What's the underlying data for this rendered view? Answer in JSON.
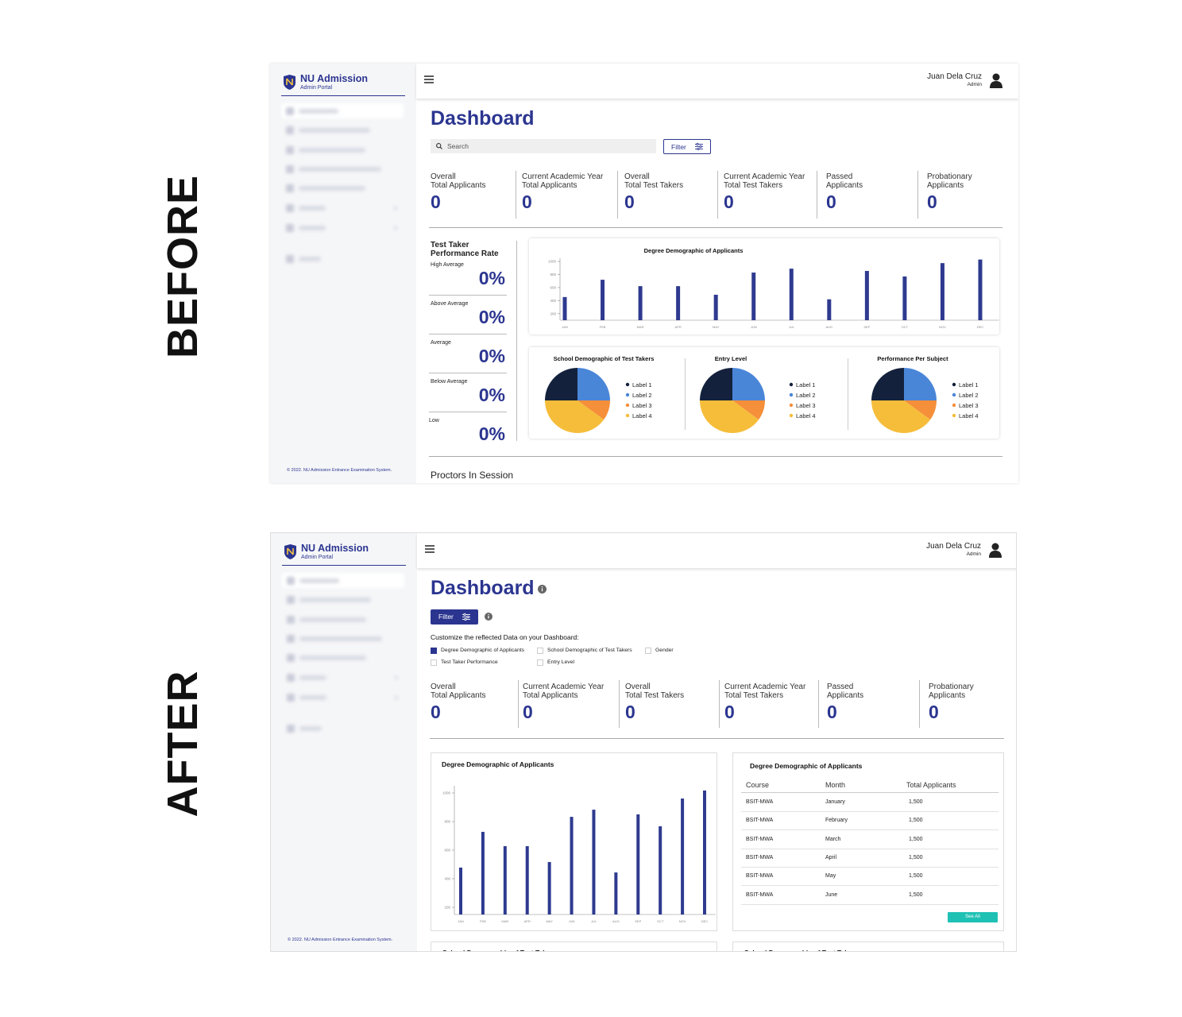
{
  "labels": {
    "before": "BEFORE",
    "after": "AFTER"
  },
  "sidebar": {
    "brand": "NU Admission",
    "subtitle": "Admin Portal",
    "footer": "© 2022. NU Admission Entrance Examination System."
  },
  "topbar": {
    "user": "Juan Dela Cruz",
    "role": "Admin"
  },
  "before": {
    "title": "Dashboard",
    "search": "Search",
    "filter": "Filter",
    "stats": [
      {
        "label": [
          "Overall",
          "Total Applicants"
        ],
        "value": 0
      },
      {
        "label": [
          "Current Academic Year",
          "Total Applicants"
        ],
        "value": 0
      },
      {
        "label": [
          "Overall",
          "Total Test Takers"
        ],
        "value": 0
      },
      {
        "label": [
          "Current Academic Year",
          "Total Test Takers"
        ],
        "value": 0
      },
      {
        "label": [
          "Passed",
          "Applicants"
        ],
        "value": 0
      },
      {
        "label": [
          "Probationary",
          "Applicants"
        ],
        "value": 0
      }
    ],
    "performance": {
      "title": "Test Taker Performance Rate",
      "rows": [
        {
          "label": "High Average",
          "value": "0%"
        },
        {
          "label": "Above Average",
          "value": "0%"
        },
        {
          "label": "Average",
          "value": "0%"
        },
        {
          "label": "Below Average",
          "value": "0%"
        },
        {
          "label": "Low",
          "value": "0%"
        }
      ]
    },
    "bar_chart": {
      "type": "bar",
      "title": "Degree Demographic of Applicants",
      "categories": [
        "JAN",
        "FEB",
        "MAR",
        "APR",
        "MAY",
        "JUN",
        "JUL",
        "AUG",
        "SEP",
        "OCT",
        "NOV",
        "DEC"
      ],
      "values": [
        455,
        720,
        622,
        622,
        490,
        830,
        890,
        420,
        855,
        770,
        975,
        1030
      ],
      "color": "#2e3a8f",
      "ylim": [
        100,
        1050
      ],
      "yticks": [
        200,
        400,
        600,
        800,
        1000
      ]
    },
    "pies": [
      {
        "type": "pie",
        "title": "School Demographic of Test Takers",
        "categories": [
          "Label 1",
          "Label 2",
          "Label 3",
          "Label 4"
        ],
        "values": [
          25,
          25,
          10,
          40
        ],
        "colors": [
          "#14213d",
          "#4a86d8",
          "#f58f3a",
          "#f5bd3a"
        ]
      },
      {
        "type": "pie",
        "title": "Entry Level",
        "categories": [
          "Label 1",
          "Label 2",
          "Label 3",
          "Label 4"
        ],
        "values": [
          25,
          25,
          10,
          40
        ],
        "colors": [
          "#14213d",
          "#4a86d8",
          "#f58f3a",
          "#f5bd3a"
        ]
      },
      {
        "type": "pie",
        "title": "Performance Per Subject",
        "categories": [
          "Label 1",
          "Label 2",
          "Label 3",
          "Label 4"
        ],
        "values": [
          25,
          25,
          10,
          40
        ],
        "colors": [
          "#14213d",
          "#4a86d8",
          "#f58f3a",
          "#f5bd3a"
        ]
      }
    ],
    "proctors": "Proctors In Session"
  },
  "after": {
    "title": "Dashboard",
    "filter": "Filter",
    "customize": {
      "title": "Customize the reflected Data on your Dashboard:",
      "options": [
        {
          "label": "Degree Demographic of Applicants",
          "checked": true
        },
        {
          "label": "School Demographic of Test Takers",
          "checked": false
        },
        {
          "label": "Gender",
          "checked": false
        },
        {
          "label": "Test Taker Performance",
          "checked": false
        },
        {
          "label": "Entry Level",
          "checked": false
        }
      ]
    },
    "stats": [
      {
        "label": [
          "Overall",
          "Total Applicants"
        ],
        "value": 0
      },
      {
        "label": [
          "Current Academic Year",
          "Total Applicants"
        ],
        "value": 0
      },
      {
        "label": [
          "Overall",
          "Total Test Takers"
        ],
        "value": 0
      },
      {
        "label": [
          "Current Academic Year",
          "Total Test Takers"
        ],
        "value": 0
      },
      {
        "label": [
          "Passed",
          "Applicants"
        ],
        "value": 0
      },
      {
        "label": [
          "Probationary",
          "Applicants"
        ],
        "value": 0
      }
    ],
    "bar_chart": {
      "type": "bar",
      "title": "Degree Demographic of Applicants",
      "categories": [
        "JAN",
        "FEB",
        "MAR",
        "APR",
        "MAY",
        "JUN",
        "JUL",
        "AUG",
        "SEP",
        "OCT",
        "NOV",
        "DEC"
      ],
      "values": [
        478,
        728,
        628,
        628,
        517,
        833,
        883,
        444,
        850,
        767,
        961,
        1017
      ],
      "color": "#2e3a8f",
      "ylim": [
        150,
        1050
      ],
      "yticks": [
        200,
        400,
        600,
        800,
        1000
      ]
    },
    "table": {
      "title": "Degree Demographic of Applicants",
      "columns": [
        "Course",
        "Month",
        "Total Applicants"
      ],
      "rows": [
        [
          "BSIT-MWA",
          "January",
          "1,500"
        ],
        [
          "BSIT-MWA",
          "February",
          "1,500"
        ],
        [
          "BSIT-MWA",
          "March",
          "1,500"
        ],
        [
          "BSIT-MWA",
          "April",
          "1,500"
        ],
        [
          "BSIT-MWA",
          "May",
          "1,500"
        ],
        [
          "BSIT-MWA",
          "June",
          "1,500"
        ]
      ],
      "button": "See All"
    },
    "more_cards": [
      "School Demographic of Test Takers",
      "School Demographic of Test Takers"
    ]
  }
}
